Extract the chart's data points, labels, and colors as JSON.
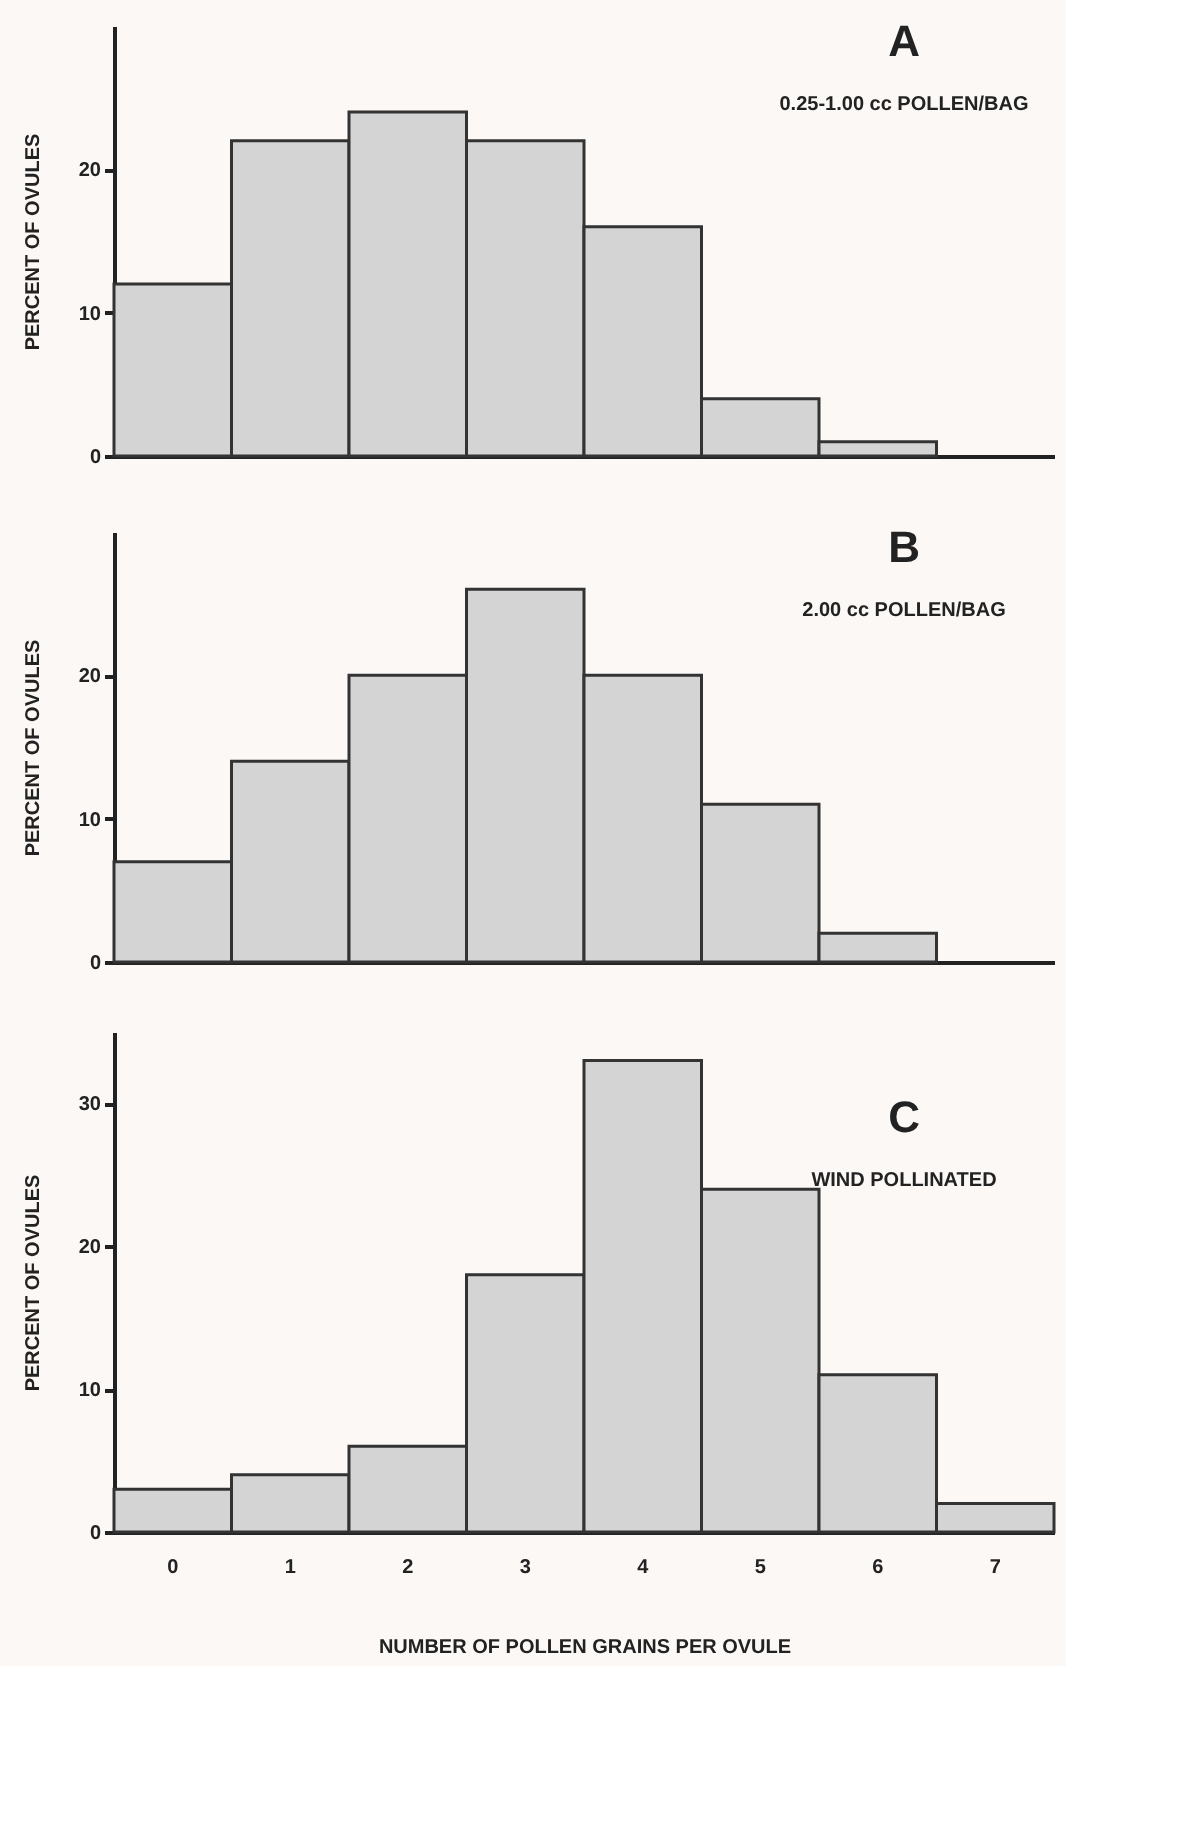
{
  "chart_data": [
    {
      "type": "bar",
      "title": "A",
      "subtitle": "0.25-1.00 cc  POLLEN/BAG",
      "ylabel": "PERCENT OF OVULES",
      "categories": [
        "0",
        "1",
        "2",
        "3",
        "4",
        "5",
        "6",
        "7"
      ],
      "values": [
        12,
        22,
        24,
        22,
        16,
        4,
        1,
        0
      ],
      "color": "#d4d4d4",
      "ylim": [
        0,
        30
      ],
      "yticks": [
        0,
        10,
        20
      ],
      "tick_labels": "y"
    },
    {
      "type": "bar",
      "title": "B",
      "subtitle": "2.00 cc POLLEN/BAG",
      "ylabel": "PERCENT OF OVULES",
      "categories": [
        "0",
        "1",
        "2",
        "3",
        "4",
        "5",
        "6",
        "7"
      ],
      "values": [
        7,
        14,
        20,
        26,
        20,
        11,
        2,
        0
      ],
      "color": "#d4d4d4",
      "ylim": [
        0,
        30
      ],
      "yticks": [
        0,
        10,
        20
      ],
      "tick_labels": "y"
    },
    {
      "type": "bar",
      "title": "C",
      "subtitle": "WIND POLLINATED",
      "ylabel": "PERCENT OF OVULES",
      "xlabel": "NUMBER OF POLLEN GRAINS PER OVULE",
      "categories": [
        "0",
        "1",
        "2",
        "3",
        "4",
        "5",
        "6",
        "7"
      ],
      "values": [
        3,
        4,
        6,
        18,
        33,
        24,
        11,
        2
      ],
      "color": "#d4d4d4",
      "ylim": [
        0,
        35
      ],
      "yticks": [
        0,
        10,
        20,
        30
      ]
    }
  ]
}
